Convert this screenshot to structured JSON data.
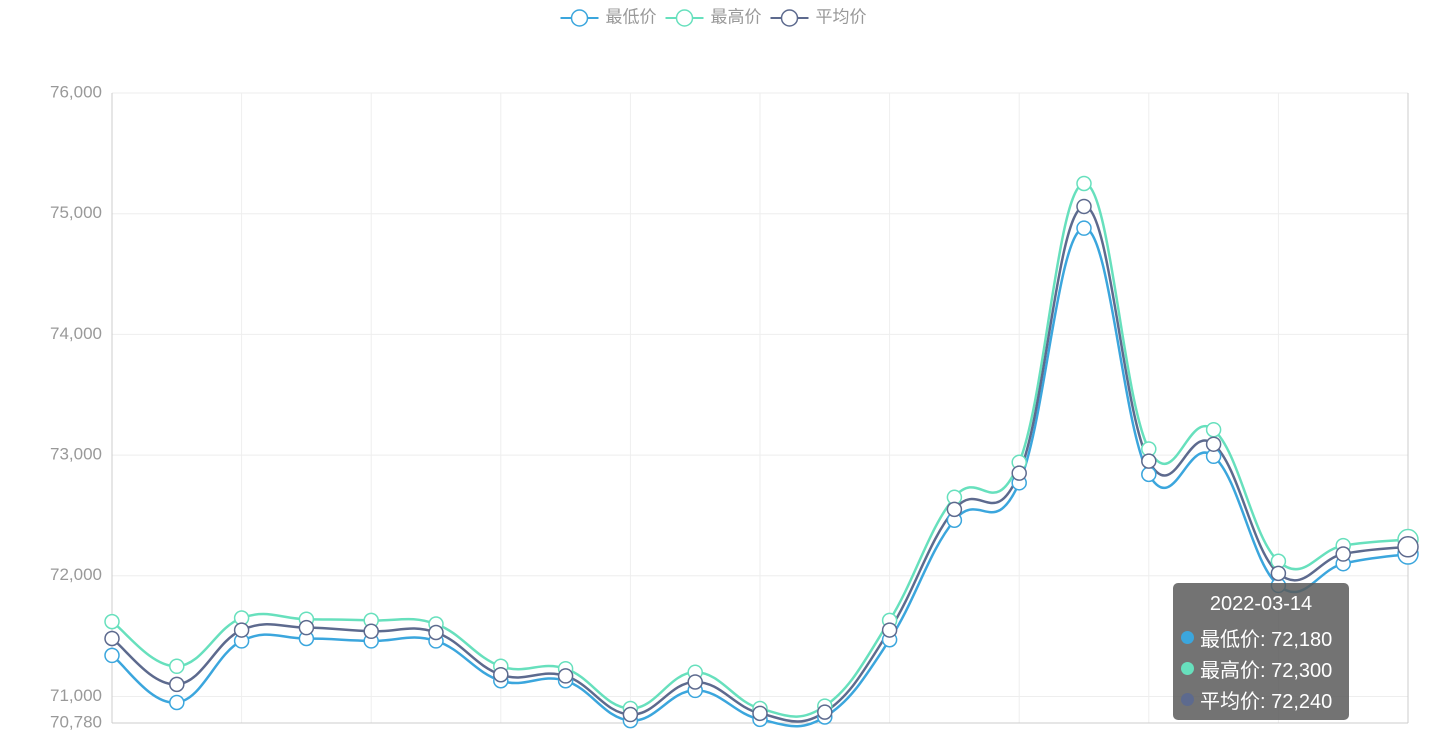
{
  "chart_data": {
    "type": "line",
    "categories": [
      null,
      null,
      null,
      null,
      null,
      null,
      null,
      null,
      null,
      null,
      null,
      null,
      null,
      null,
      null,
      null,
      null,
      null,
      null,
      null,
      null
    ],
    "series": [
      {
        "name": "最低价",
        "color": "#3ba6dd",
        "values": [
          71340,
          70950,
          71460,
          71480,
          71460,
          71460,
          71130,
          71130,
          70800,
          71050,
          70810,
          70830,
          71470,
          72460,
          72770,
          74880,
          72840,
          72990,
          71920,
          72100,
          72180
        ]
      },
      {
        "name": "最高价",
        "color": "#67e0bd",
        "values": [
          71620,
          71250,
          71650,
          71640,
          71630,
          71600,
          71250,
          71230,
          70900,
          71200,
          70900,
          70920,
          71630,
          72650,
          72940,
          75250,
          73050,
          73210,
          72120,
          72250,
          72300
        ]
      },
      {
        "name": "平均价",
        "color": "#5d6a8e",
        "values": [
          71480,
          71100,
          71550,
          71570,
          71540,
          71530,
          71180,
          71170,
          70850,
          71120,
          70860,
          70870,
          71550,
          72550,
          72850,
          75060,
          72950,
          73090,
          72020,
          72180,
          72240
        ]
      }
    ],
    "ylim": [
      70780,
      76000
    ],
    "yticks": [
      {
        "value": 70780,
        "label": "70,780"
      },
      {
        "value": 71000,
        "label": "71,000"
      },
      {
        "value": 72000,
        "label": "72,000"
      },
      {
        "value": 73000,
        "label": "73,000"
      },
      {
        "value": 74000,
        "label": "74,000"
      },
      {
        "value": 75000,
        "label": "75,000"
      },
      {
        "value": 76000,
        "label": "76,000"
      }
    ],
    "grid": true,
    "tooltip": {
      "title": "2022-03-14",
      "rows": [
        "最低价: 72,180",
        "最高价: 72,300",
        "平均价: 72,240"
      ]
    }
  }
}
